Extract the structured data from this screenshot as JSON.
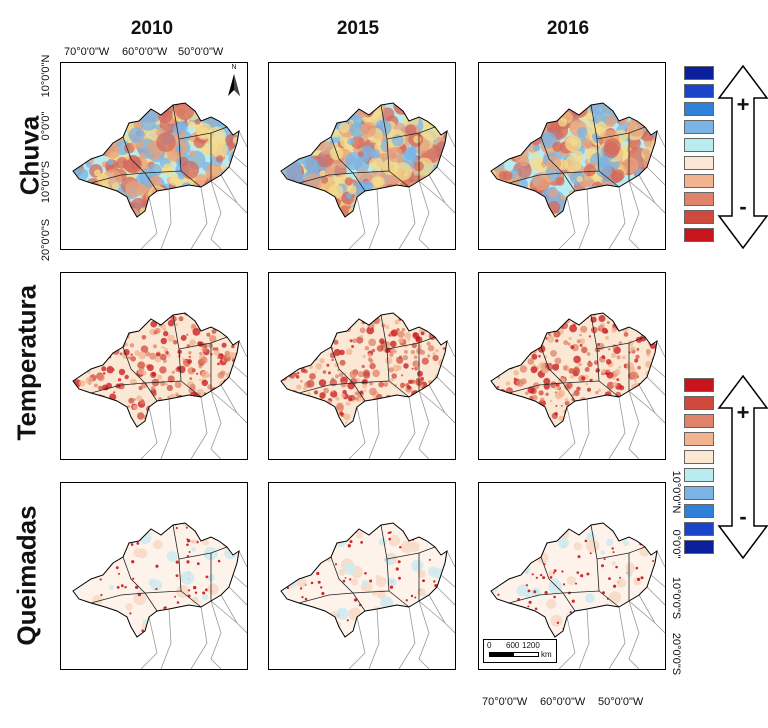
{
  "columns": [
    "2010",
    "2015",
    "2016"
  ],
  "rows": [
    "Chuva",
    "Temperatura",
    "Queimadas"
  ],
  "lon_labels": [
    "70°0'0\"W",
    "60°0'0\"W",
    "50°0'0\"W"
  ],
  "lat_labels_left": [
    "10°0'0\"N",
    "0°0'0\"",
    "10°0'0\"S",
    "20°0'0\"S"
  ],
  "lat_labels_right": [
    "10°0'0\"N",
    "0°0'0\"",
    "10°0'0\"S",
    "20°0'0\"S"
  ],
  "north_label": "N",
  "scale": {
    "ticks": [
      "0",
      "600",
      "1200"
    ],
    "unit": "km"
  },
  "legend_top": {
    "colors": [
      "#0a1f9c",
      "#1b45c8",
      "#2f80d8",
      "#7ab4e6",
      "#b9ecef",
      "#fbe8d4",
      "#f2b48f",
      "#e0836a",
      "#cf4a3c",
      "#c9141b"
    ],
    "plus": "+",
    "minus": "-"
  },
  "legend_bottom": {
    "colors": [
      "#c9141b",
      "#cf4a3c",
      "#e0836a",
      "#f2b48f",
      "#fbe8d4",
      "#b9ecef",
      "#7ab4e6",
      "#2f80d8",
      "#1b45c8",
      "#0a1f9c"
    ],
    "plus": "+",
    "minus": "-"
  },
  "palettes": {
    "chuva": [
      "#b9ecef",
      "#f6dc8c",
      "#e8a27c",
      "#d46a5c",
      "#7ab4e6"
    ],
    "temperatura": [
      "#fbe8d4",
      "#f2b48f",
      "#e0836a",
      "#cf4a3c",
      "#c9141b"
    ],
    "queimadas": [
      "#fdf3ea",
      "#f7dac8",
      "#cfeaf0",
      "#c9141b"
    ]
  }
}
